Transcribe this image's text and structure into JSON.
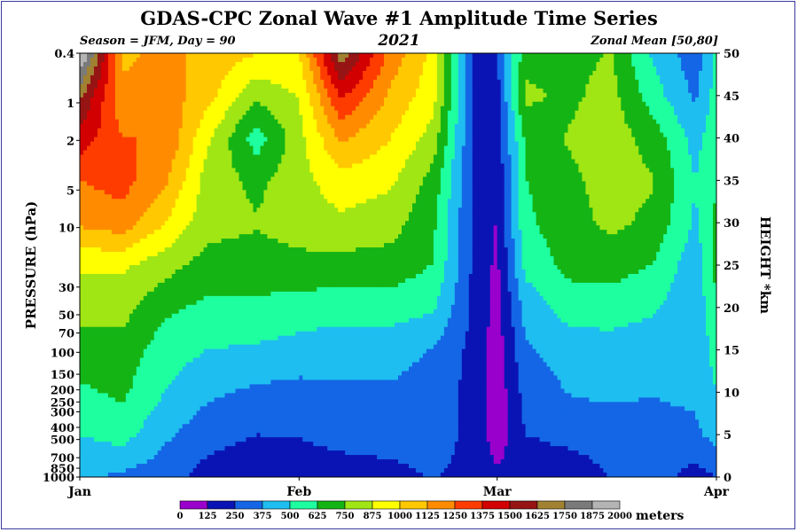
{
  "chart_data": {
    "type": "heatmap",
    "title": "GDAS-CPC Zonal Wave #1 Amplitude Time Series",
    "subtitle_left": "Season = JFM, Day =  90",
    "subtitle_center": "2021",
    "subtitle_right": "Zonal Mean [50,80]",
    "ylabel_left": "PRESSURE (hPa)",
    "ylabel_right": "HEIGHT *km",
    "x_ticks": [
      "Jan",
      "Feb",
      "Mar",
      "Apr"
    ],
    "y_left_ticks": [
      "0.4",
      "1",
      "2",
      "5",
      "10",
      "30",
      "50",
      "70",
      "100",
      "150",
      "200",
      "250",
      "300",
      "400",
      "500",
      "700",
      "850",
      "1000"
    ],
    "y_right_ticks": [
      "50",
      "45",
      "40",
      "35",
      "30",
      "25",
      "20",
      "15",
      "10",
      "5",
      "0"
    ],
    "colorbar": {
      "unit": "meters",
      "levels": [
        "0",
        "125",
        "250",
        "375",
        "500",
        "625",
        "750",
        "875",
        "1000",
        "1125",
        "1250",
        "1375",
        "1500",
        "1625",
        "1750",
        "1875",
        "2000"
      ],
      "colors": [
        "#9a00cc",
        "#0a14b4",
        "#1466e6",
        "#1ebef0",
        "#1effa0",
        "#14b414",
        "#a0e614",
        "#ffff00",
        "#ffc800",
        "#ff8c00",
        "#ff3c00",
        "#d20000",
        "#961414",
        "#a08232",
        "#7a7a7a",
        "#b4b4b4"
      ]
    },
    "time_series_days": [
      0,
      6,
      12,
      18,
      25,
      31,
      37,
      44,
      50,
      56,
      59,
      63,
      69,
      75,
      81,
      87,
      90
    ],
    "height_levels_km": [
      0,
      5,
      10,
      15,
      20,
      25,
      30,
      35,
      40,
      45,
      50
    ],
    "amplitude_m": [
      [
        400,
        350,
        300,
        200,
        150,
        150,
        180,
        200,
        260,
        200,
        150,
        130,
        150,
        260,
        300,
        200,
        250
      ],
      [
        500,
        550,
        400,
        300,
        250,
        260,
        300,
        320,
        320,
        200,
        60,
        250,
        300,
        310,
        330,
        350,
        420
      ],
      [
        600,
        650,
        500,
        400,
        350,
        330,
        360,
        360,
        320,
        200,
        40,
        300,
        380,
        400,
        380,
        400,
        500
      ],
      [
        700,
        700,
        560,
        500,
        480,
        460,
        420,
        420,
        370,
        200,
        60,
        360,
        420,
        450,
        420,
        380,
        560
      ],
      [
        800,
        800,
        650,
        600,
        600,
        560,
        560,
        560,
        520,
        200,
        80,
        420,
        560,
        560,
        520,
        400,
        620
      ],
      [
        900,
        900,
        800,
        700,
        700,
        720,
        700,
        700,
        620,
        200,
        100,
        540,
        660,
        680,
        620,
        420,
        660
      ],
      [
        1150,
        1200,
        1000,
        800,
        760,
        800,
        850,
        800,
        650,
        200,
        120,
        600,
        700,
        780,
        720,
        480,
        650
      ],
      [
        1250,
        1300,
        1150,
        820,
        720,
        830,
        950,
        900,
        700,
        200,
        150,
        620,
        720,
        800,
        760,
        500,
        620
      ],
      [
        1450,
        1250,
        1250,
        900,
        560,
        830,
        1150,
        1000,
        820,
        200,
        180,
        650,
        760,
        820,
        700,
        450,
        600
      ],
      [
        1650,
        1150,
        1200,
        1050,
        780,
        880,
        1400,
        1100,
        920,
        200,
        200,
        780,
        720,
        800,
        560,
        350,
        560
      ],
      [
        2050,
        1100,
        1150,
        1100,
        1000,
        1000,
        1700,
        1200,
        960,
        200,
        250,
        700,
        700,
        760,
        480,
        300,
        520
      ]
    ]
  }
}
